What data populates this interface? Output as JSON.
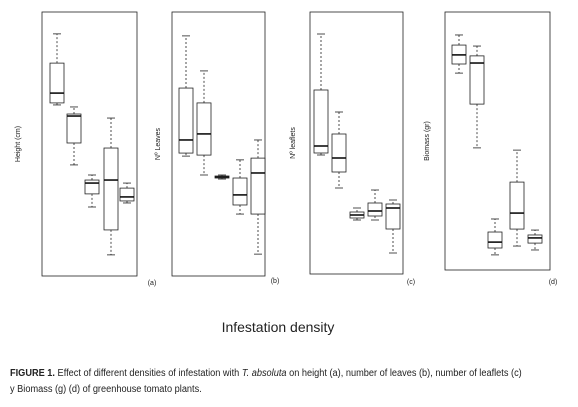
{
  "chart_data": [
    {
      "type": "box",
      "ylabel": "Height (cm)",
      "panel": "(a)",
      "ylim": [
        0,
        100
      ],
      "boxes": [
        {
          "whislo": 65.5,
          "q1": 66.3,
          "med": 70.2,
          "q3": 82.1,
          "whishi": 93.7
        },
        {
          "whislo": 41.7,
          "q1": 50.4,
          "med": 61.1,
          "q3": 61.9,
          "whishi": 64.7
        },
        {
          "whislo": 25.0,
          "q1": 30.2,
          "med": 34.5,
          "q3": 35.7,
          "whishi": 37.7
        },
        {
          "whislo": 6.0,
          "q1": 15.9,
          "med": 35.7,
          "q3": 48.4,
          "whishi": 60.3
        },
        {
          "whislo": 26.6,
          "q1": 27.4,
          "med": 29.0,
          "q3": 32.5,
          "whishi": 34.5
        }
      ]
    },
    {
      "type": "box",
      "ylabel": "Nº Leaves",
      "panel": "(b)",
      "ylim": [
        0,
        100
      ],
      "boxes": [
        {
          "whislo": 45.2,
          "q1": 46.4,
          "med": 51.6,
          "q3": 72.2,
          "whishi": 92.9
        },
        {
          "whislo": 37.7,
          "q1": 45.6,
          "med": 54.0,
          "q3": 66.3,
          "whishi": 79.0
        },
        {
          "whislo": 36.1,
          "q1": 36.5,
          "med": 36.9,
          "q3": 37.3,
          "whishi": 37.7
        },
        {
          "whislo": 22.2,
          "q1": 25.8,
          "med": 29.8,
          "q3": 36.5,
          "whishi": 43.7
        },
        {
          "whislo": 6.3,
          "q1": 22.2,
          "med": 38.5,
          "q3": 44.4,
          "whishi": 51.6
        }
      ]
    },
    {
      "type": "box",
      "ylabel": "Nº leaflets",
      "panel": "(c)",
      "ylim": [
        0,
        100
      ],
      "boxes": [
        {
          "whislo": 45.2,
          "q1": 46.0,
          "med": 48.8,
          "q3": 71.2,
          "whishi": 93.6
        },
        {
          "whislo": 32.0,
          "q1": 38.4,
          "med": 44.0,
          "q3": 53.6,
          "whishi": 62.4
        },
        {
          "whislo": 19.2,
          "q1": 20.0,
          "med": 21.2,
          "q3": 22.4,
          "whishi": 24.0
        },
        {
          "whislo": 19.2,
          "q1": 20.8,
          "med": 22.8,
          "q3": 26.0,
          "whishi": 31.2
        },
        {
          "whislo": 6.0,
          "q1": 15.6,
          "med": 24.0,
          "q3": 25.6,
          "whishi": 27.2
        }
      ]
    },
    {
      "type": "box",
      "ylabel": "Biomass (gr)",
      "panel": "(d)",
      "ylim": [
        0,
        100
      ],
      "boxes": [
        {
          "whislo": 77.6,
          "q1": 81.3,
          "med": 85.0,
          "q3": 89.0,
          "whishi": 93.1
        },
        {
          "whislo": 47.2,
          "q1": 65.0,
          "med": 81.7,
          "q3": 84.6,
          "whishi": 88.6
        },
        {
          "whislo": 3.7,
          "q1": 6.5,
          "med": 8.9,
          "q3": 13.0,
          "whishi": 18.3
        },
        {
          "whislo": 7.3,
          "q1": 14.2,
          "med": 20.7,
          "q3": 33.3,
          "whishi": 46.3
        },
        {
          "whislo": 5.7,
          "q1": 8.5,
          "med": 10.6,
          "q3": 11.8,
          "whishi": 13.8
        }
      ]
    }
  ],
  "xlabel": "Infestation density",
  "caption": {
    "label": "FIGURE 1.",
    "text_before": "Effect of different densities of infestation with",
    "species": "T. absoluta",
    "text_after": "on height (a), number of leaves (b), number of leaflets (c) y Biomass (g) (d) of greenhouse tomato plants."
  }
}
